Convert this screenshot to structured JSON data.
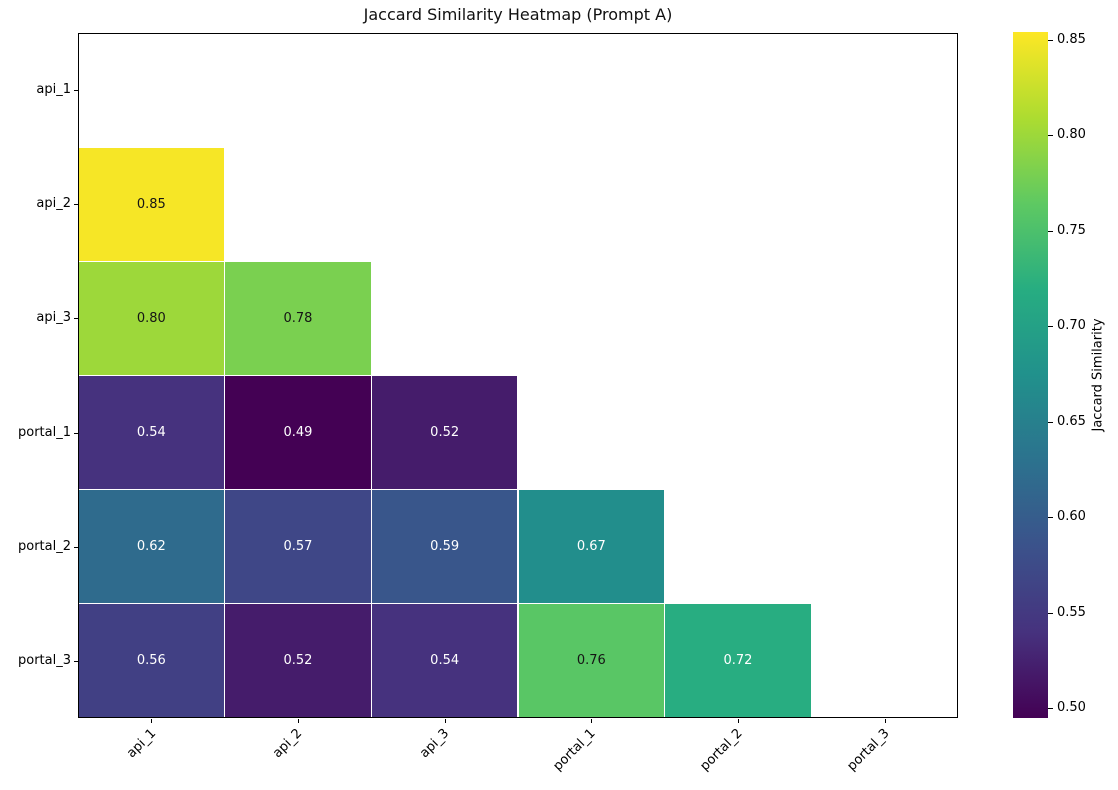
{
  "chart_data": {
    "type": "heatmap",
    "title": "Jaccard Similarity Heatmap (Prompt A)",
    "x_tick_labels": [
      "api_1",
      "api_2",
      "api_3",
      "portal_1",
      "portal_2",
      "portal_3"
    ],
    "y_tick_labels": [
      "api_1",
      "api_2",
      "api_3",
      "portal_1",
      "portal_2",
      "portal_3"
    ],
    "matrix": [
      [
        null,
        null,
        null,
        null,
        null,
        null
      ],
      [
        0.85,
        null,
        null,
        null,
        null,
        null
      ],
      [
        0.8,
        0.78,
        null,
        null,
        null,
        null
      ],
      [
        0.54,
        0.49,
        0.52,
        null,
        null,
        null
      ],
      [
        0.62,
        0.57,
        0.59,
        0.67,
        null,
        null
      ],
      [
        0.56,
        0.52,
        0.54,
        0.76,
        0.72,
        null
      ]
    ],
    "mask": "diagonal and upper triangle hidden (white)",
    "value_decimals": 2,
    "colorbar": {
      "label": "Jaccard Similarity",
      "ticks": [
        0.85,
        0.8,
        0.75,
        0.7,
        0.65,
        0.6,
        0.55,
        0.5
      ],
      "vmin": 0.495,
      "vmax": 0.854
    },
    "colormap": {
      "name": "viridis",
      "stops": [
        "#440154",
        "#46327e",
        "#3b528b",
        "#2c728e",
        "#21918c",
        "#27ad81",
        "#5ec962",
        "#addc30",
        "#fde725"
      ]
    },
    "colors": {
      "masked_cell": "#ffffff",
      "grid_line": "#ffffff",
      "annotation_dark": "#151515",
      "annotation_light": "#ffffff",
      "axis": "#000000",
      "title_text": "#111111"
    }
  }
}
